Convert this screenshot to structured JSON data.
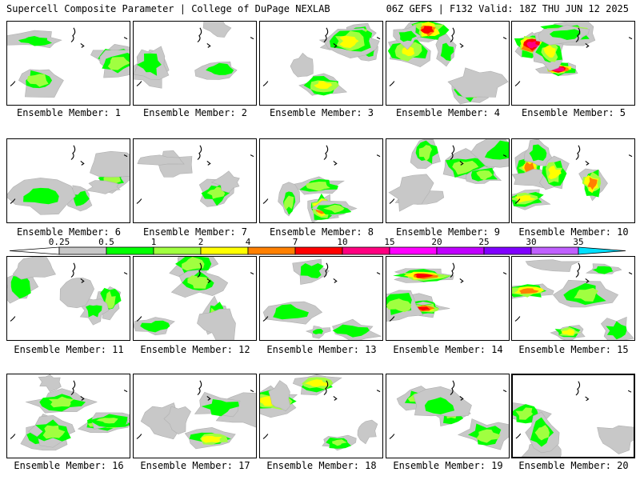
{
  "header": {
    "title": "Supercell Composite Parameter | College of DuPage NEXLAB",
    "run_info": "06Z GEFS | F132 Valid: 18Z THU JUN 12 2025"
  },
  "members": [
    {
      "label": "Ensemble Member: 1",
      "peak": 3
    },
    {
      "label": "Ensemble Member: 2",
      "peak": 2
    },
    {
      "label": "Ensemble Member: 3",
      "peak": 4
    },
    {
      "label": "Ensemble Member: 4",
      "peak": 6
    },
    {
      "label": "Ensemble Member: 5",
      "peak": 7
    },
    {
      "label": "Ensemble Member: 6",
      "peak": 3
    },
    {
      "label": "Ensemble Member: 7",
      "peak": 3
    },
    {
      "label": "Ensemble Member: 8",
      "peak": 5
    },
    {
      "label": "Ensemble Member: 9",
      "peak": 3
    },
    {
      "label": "Ensemble Member: 10",
      "peak": 5
    },
    {
      "label": "Ensemble Member: 11",
      "peak": 3
    },
    {
      "label": "Ensemble Member: 12",
      "peak": 3
    },
    {
      "label": "Ensemble Member: 13",
      "peak": 2
    },
    {
      "label": "Ensemble Member: 14",
      "peak": 6
    },
    {
      "label": "Ensemble Member: 15",
      "peak": 5
    },
    {
      "label": "Ensemble Member: 16",
      "peak": 4
    },
    {
      "label": "Ensemble Member: 17",
      "peak": 4
    },
    {
      "label": "Ensemble Member: 18",
      "peak": 4
    },
    {
      "label": "Ensemble Member: 19",
      "peak": 3
    },
    {
      "label": "Ensemble Member: 20",
      "peak": 3
    }
  ],
  "selected_member": 20,
  "colorbar": {
    "thresholds": [
      "0.25",
      "0.5",
      "1",
      "2",
      "4",
      "7",
      "10",
      "15",
      "20",
      "25",
      "30",
      "35"
    ],
    "colors": [
      "#c8c8c8",
      "#00ff00",
      "#a0ff40",
      "#ffff00",
      "#ff8000",
      "#ff0000",
      "#ff0080",
      "#ff00ff",
      "#c000ff",
      "#8000ff",
      "#c060ff",
      "#00e0ff"
    ]
  }
}
